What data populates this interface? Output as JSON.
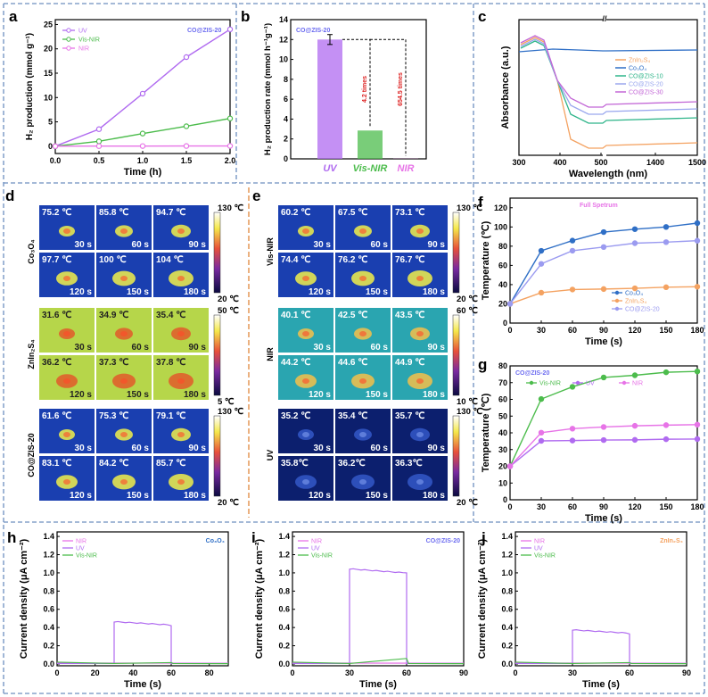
{
  "colors": {
    "uv": "#b06bf0",
    "visnir": "#4cbc4c",
    "nir": "#e774e7",
    "znin": "#f4a261",
    "co3o4": "#2f6fc6",
    "cozis": "#9b9bf0",
    "cozis10": "#2fb58a",
    "cozis20": "#9aa7ee",
    "cozis30": "#c266d6",
    "dash": "#6d8fbf"
  },
  "panels": {
    "a": "a",
    "b": "b",
    "c": "c",
    "d": "d",
    "e": "e",
    "f": "f",
    "g": "g",
    "h": "h",
    "i": "i",
    "j": "j"
  },
  "chart_data": [
    {
      "id": "a",
      "type": "line",
      "xlabel": "Time (h)",
      "ylabel": "H₂ production (mmol g⁻¹)",
      "annotation": "CO@ZIS-20",
      "xlim": [
        0,
        2
      ],
      "ylim": [
        -1.5,
        26
      ],
      "xticks": [
        "0.0",
        "0.5",
        "1.0",
        "1.5",
        "2.0"
      ],
      "yticks": [
        "0",
        "5",
        "10",
        "15",
        "20",
        "25"
      ],
      "x": [
        0,
        0.5,
        1.0,
        1.5,
        2.0
      ],
      "series": [
        {
          "name": "UV",
          "values": [
            0,
            3.5,
            10.8,
            18.3,
            24.0
          ]
        },
        {
          "name": "Vis-NIR",
          "values": [
            0,
            1.0,
            2.6,
            4.1,
            5.7
          ]
        },
        {
          "name": "NIR",
          "values": [
            0,
            0.02,
            0.03,
            0.04,
            0.05
          ]
        }
      ]
    },
    {
      "id": "b",
      "type": "bar",
      "ylabel": "H₂ production rate (mmol h⁻¹g⁻¹)",
      "annotation": "CO@ZIS-20",
      "categories": [
        "UV",
        "Vis-NIR",
        "NIR"
      ],
      "values": [
        12.0,
        2.85,
        0.02
      ],
      "error": [
        0.5,
        0,
        0
      ],
      "ylim": [
        0,
        14
      ],
      "yticks": [
        "0",
        "2",
        "4",
        "6",
        "8",
        "10",
        "12",
        "14"
      ],
      "arrows": [
        "4.2 times",
        "654.5 times"
      ]
    },
    {
      "id": "c",
      "type": "line",
      "xlabel": "Wavelength (nm)",
      "ylabel": "Absorbance (a.u.)",
      "xticks": [
        "300",
        "400",
        "500",
        "1400",
        "1500"
      ],
      "series": [
        {
          "name": "ZnIn₂S₄"
        },
        {
          "name": "Co₃O₄"
        },
        {
          "name": "CO@ZIS-10"
        },
        {
          "name": "CO@ZIS-20"
        },
        {
          "name": "CO@ZIS-30"
        }
      ]
    },
    {
      "id": "f",
      "type": "line",
      "xlabel": "Time (s)",
      "ylabel": "Temperature (℃)",
      "annotation": "Full Spetrum",
      "xlim": [
        0,
        180
      ],
      "ylim": [
        0,
        130
      ],
      "xticks": [
        "0",
        "30",
        "60",
        "90",
        "120",
        "150",
        "180"
      ],
      "yticks": [
        "0",
        "20",
        "40",
        "60",
        "80",
        "100",
        "120"
      ],
      "x": [
        0,
        30,
        60,
        90,
        120,
        150,
        180
      ],
      "series": [
        {
          "name": "Co₃O₄",
          "values": [
            20,
            75.2,
            85.8,
            94.7,
            97.7,
            100,
            104
          ]
        },
        {
          "name": "ZnIn₂S₄",
          "values": [
            20,
            31.6,
            34.9,
            35.4,
            36.2,
            37.3,
            37.8
          ]
        },
        {
          "name": "CO@ZIS-20",
          "values": [
            20,
            61.6,
            75.3,
            79.1,
            83.1,
            84.2,
            85.7
          ]
        }
      ]
    },
    {
      "id": "g",
      "type": "line",
      "xlabel": "Time (s)",
      "ylabel": "Temperature (℃)",
      "annotation": "CO@ZIS-20",
      "xlim": [
        0,
        180
      ],
      "ylim": [
        0,
        80
      ],
      "xticks": [
        "0",
        "30",
        "60",
        "90",
        "120",
        "150",
        "180"
      ],
      "yticks": [
        "0",
        "10",
        "20",
        "30",
        "40",
        "50",
        "60",
        "70",
        "80"
      ],
      "x": [
        0,
        30,
        60,
        90,
        120,
        150,
        180
      ],
      "series": [
        {
          "name": "Vis-NIR",
          "values": [
            20,
            60.2,
            67.5,
            73.1,
            74.4,
            76.2,
            76.7
          ]
        },
        {
          "name": "UV",
          "values": [
            20,
            35.2,
            35.4,
            35.7,
            35.8,
            36.2,
            36.3
          ]
        },
        {
          "name": "NIR",
          "values": [
            20,
            40.1,
            42.5,
            43.5,
            44.2,
            44.6,
            44.9
          ]
        }
      ]
    },
    {
      "id": "h",
      "type": "line",
      "xlabel": "Time (s)",
      "ylabel": "Current density (μA cm⁻²)",
      "annotation": "Co₃O₄",
      "xlim": [
        0,
        90
      ],
      "ylim": [
        -0.02,
        1.45
      ],
      "xticks": [
        "0",
        "20",
        "40",
        "60",
        "80"
      ],
      "yticks": [
        "0.0",
        "0.2",
        "0.4",
        "0.6",
        "0.8",
        "1.0",
        "1.2",
        "1.4"
      ],
      "legend": [
        "NIR",
        "UV",
        "Vis-NIR"
      ],
      "on": [
        30,
        60
      ],
      "plateau": 0.46
    },
    {
      "id": "i",
      "type": "line",
      "xlabel": "Time (s)",
      "ylabel": "Current density (μA cm⁻²)",
      "annotation": "CO@ZIS-20",
      "xlim": [
        0,
        90
      ],
      "ylim": [
        -0.02,
        1.45
      ],
      "xticks": [
        "0",
        "30",
        "60",
        "90"
      ],
      "yticks": [
        "0.0",
        "0.2",
        "0.4",
        "0.6",
        "0.8",
        "1.0",
        "1.2",
        "1.4"
      ],
      "legend": [
        "NIR",
        "UV",
        "Vis-NIR"
      ],
      "on": [
        30,
        60
      ],
      "plateau": 1.04
    },
    {
      "id": "j",
      "type": "line",
      "xlabel": "Time (s)",
      "ylabel": "Current density (μA cm⁻²)",
      "annotation": "ZnIn₂S₄",
      "xlim": [
        0,
        90
      ],
      "ylim": [
        -0.02,
        1.45
      ],
      "xticks": [
        "0",
        "30",
        "60",
        "90"
      ],
      "yticks": [
        "0.0",
        "0.2",
        "0.4",
        "0.6",
        "0.8",
        "1.0",
        "1.2",
        "1.4"
      ],
      "legend": [
        "NIR",
        "UV",
        "Vis-NIR"
      ],
      "on": [
        30,
        60
      ],
      "plateau": 0.37
    }
  ],
  "thermal": {
    "d": {
      "rows": [
        {
          "label": "Co₃O₄",
          "scale": [
            "130 ℃",
            "20 ℃"
          ],
          "temps": [
            "75.2 ℃",
            "85.8 ℃",
            "94.7 ℃",
            "97.7 ℃",
            "100 ℃",
            "104 ℃"
          ]
        },
        {
          "label": "ZnIn₂S₄",
          "scale": [
            "50 ℃",
            "5 ℃"
          ],
          "temps": [
            "31.6 ℃",
            "34.9 ℃",
            "35.4 ℃",
            "36.2 ℃",
            "37.3 ℃",
            "37.8 ℃"
          ]
        },
        {
          "label": "CO@ZIS-20",
          "scale": [
            "130 ℃",
            "20 ℃"
          ],
          "temps": [
            "61.6 ℃",
            "75.3 ℃",
            "79.1 ℃",
            "83.1 ℃",
            "84.2 ℃",
            "85.7 ℃"
          ]
        }
      ]
    },
    "e": {
      "rows": [
        {
          "label": "Vis-NIR",
          "scale": [
            "130 ℃",
            "20 ℃"
          ],
          "temps": [
            "60.2 ℃",
            "67.5 ℃",
            "73.1 ℃",
            "74.4 ℃",
            "76.2 ℃",
            "76.7 ℃"
          ]
        },
        {
          "label": "NIR",
          "scale": [
            "60 ℃",
            "10 ℃"
          ],
          "temps": [
            "40.1 ℃",
            "42.5 ℃",
            "43.5 ℃",
            "44.2 ℃",
            "44.6 ℃",
            "44.9 ℃"
          ]
        },
        {
          "label": "UV",
          "scale": [
            "130 ℃",
            "20 ℃"
          ],
          "temps": [
            "35.2 ℃",
            "35.4 ℃",
            "35.7 ℃",
            "35.8℃",
            "36.2℃",
            "36.3℃"
          ]
        }
      ]
    },
    "times": [
      "30 s",
      "60 s",
      "90 s",
      "120 s",
      "150 s",
      "180 s"
    ]
  }
}
